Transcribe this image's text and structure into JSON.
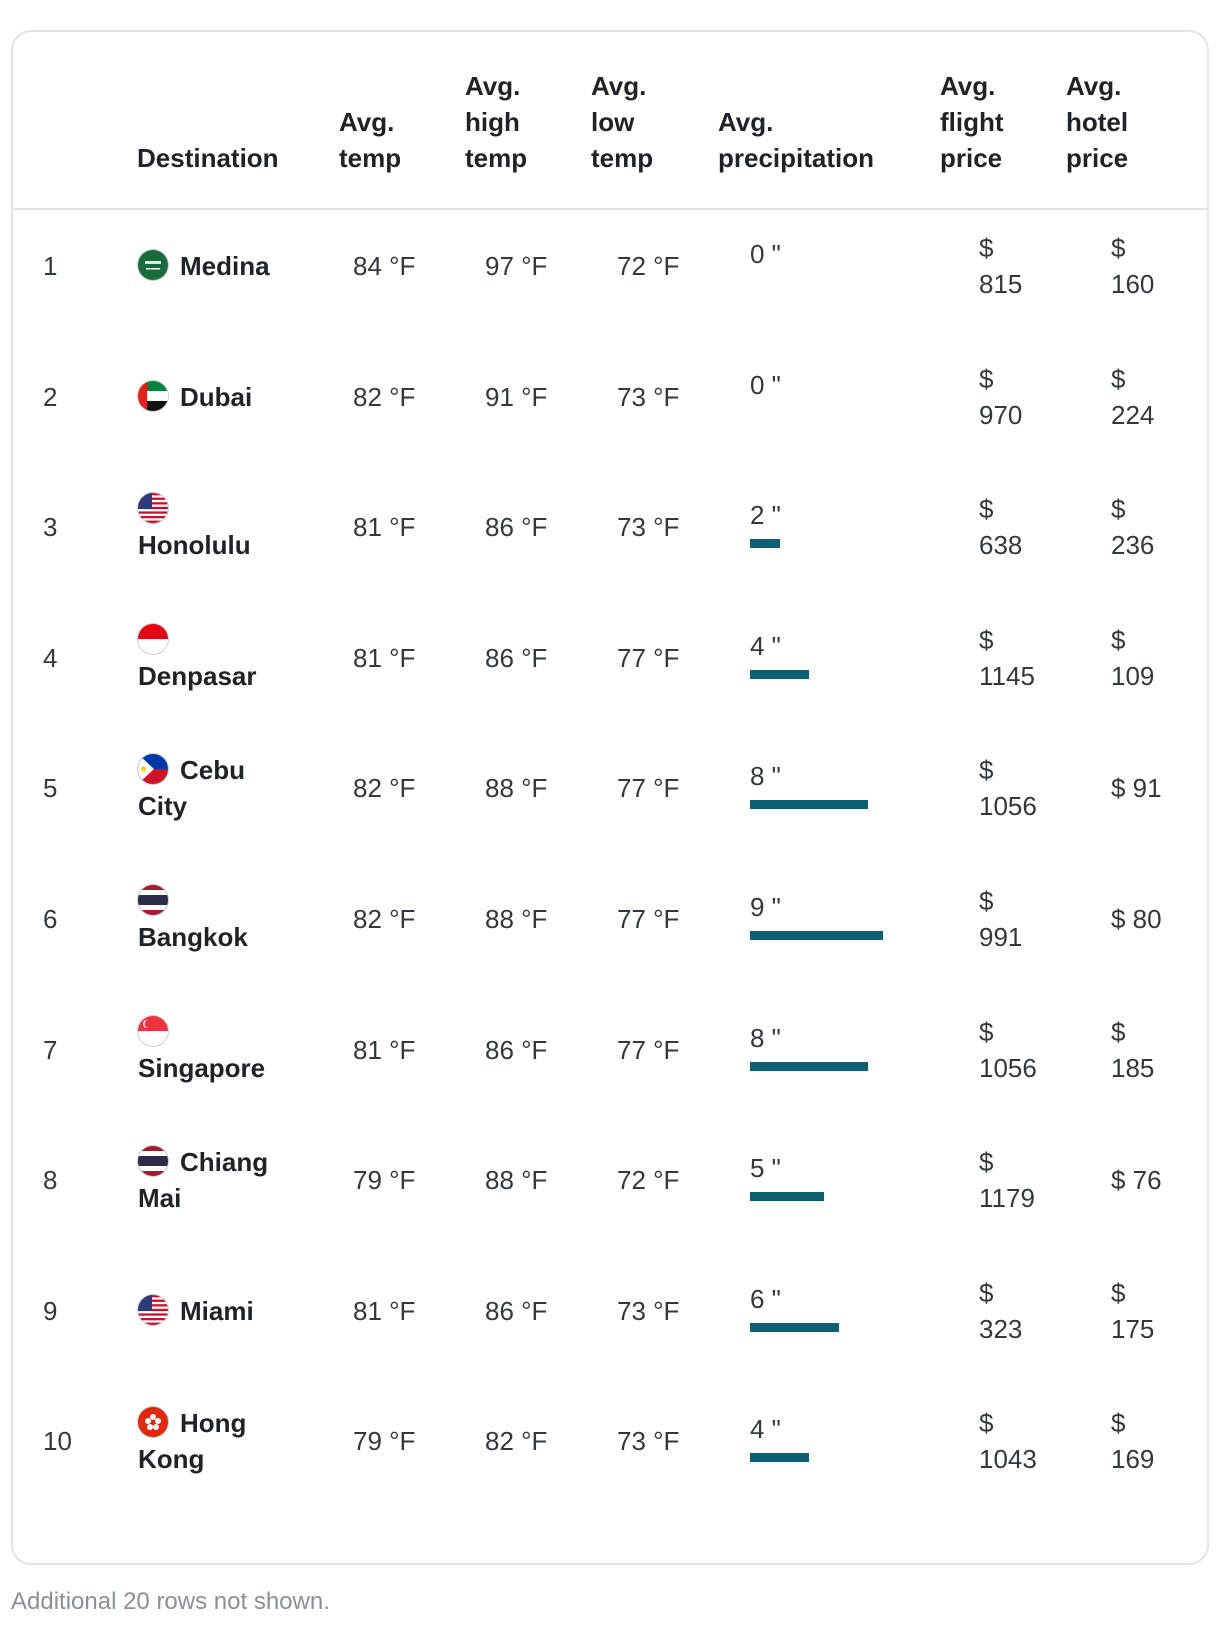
{
  "table": {
    "headers": {
      "destination": "Destination",
      "avg_temp": [
        "Avg.",
        "temp"
      ],
      "avg_high": [
        "Avg.",
        "high",
        "temp"
      ],
      "avg_low": [
        "Avg.",
        "low",
        "temp"
      ],
      "precip": [
        "Avg.",
        "precipitation"
      ],
      "flight": [
        "Avg.",
        "flight",
        "price"
      ],
      "hotel": [
        "Avg.",
        "hotel",
        "price"
      ]
    },
    "rows": [
      {
        "rank": "1",
        "destination": "Medina",
        "flag": "saudi-arabia-flag-icon",
        "avg_temp": "84 °F",
        "high": "97 °F",
        "low": "72 °F",
        "precip": "0 \"",
        "precip_value": 0,
        "flight": "$ 815",
        "hotel": "$ 160"
      },
      {
        "rank": "2",
        "destination": "Dubai",
        "flag": "uae-flag-icon",
        "avg_temp": "82 °F",
        "high": "91 °F",
        "low": "73 °F",
        "precip": "0 \"",
        "precip_value": 0,
        "flight": "$ 970",
        "hotel": "$ 224"
      },
      {
        "rank": "3",
        "destination": "Honolulu",
        "flag": "usa-flag-icon",
        "avg_temp": "81 °F",
        "high": "86 °F",
        "low": "73 °F",
        "precip": "2 \"",
        "precip_value": 2,
        "flight": "$ 638",
        "hotel": "$ 236"
      },
      {
        "rank": "4",
        "destination": "Denpasar",
        "flag": "indonesia-flag-icon",
        "avg_temp": "81 °F",
        "high": "86 °F",
        "low": "77 °F",
        "precip": "4 \"",
        "precip_value": 4,
        "flight": "$ 1145",
        "hotel": "$ 109"
      },
      {
        "rank": "5",
        "destination": "Cebu City",
        "flag": "philippines-flag-icon",
        "avg_temp": "82 °F",
        "high": "88 °F",
        "low": "77 °F",
        "precip": "8 \"",
        "precip_value": 8,
        "flight": "$ 1056",
        "hotel": "$ 91"
      },
      {
        "rank": "6",
        "destination": "Bangkok",
        "flag": "thailand-flag-icon",
        "avg_temp": "82 °F",
        "high": "88 °F",
        "low": "77 °F",
        "precip": "9 \"",
        "precip_value": 9,
        "flight": "$ 991",
        "hotel": "$ 80"
      },
      {
        "rank": "7",
        "destination": "Singapore",
        "flag": "singapore-flag-icon",
        "avg_temp": "81 °F",
        "high": "86 °F",
        "low": "77 °F",
        "precip": "8 \"",
        "precip_value": 8,
        "flight": "$ 1056",
        "hotel": "$ 185"
      },
      {
        "rank": "8",
        "destination": "Chiang Mai",
        "flag": "thailand-flag-icon",
        "avg_temp": "79 °F",
        "high": "88 °F",
        "low": "72 °F",
        "precip": "5 \"",
        "precip_value": 5,
        "flight": "$ 1179",
        "hotel": "$ 76"
      },
      {
        "rank": "9",
        "destination": "Miami",
        "flag": "usa-flag-icon",
        "avg_temp": "81 °F",
        "high": "86 °F",
        "low": "73 °F",
        "precip": "6 \"",
        "precip_value": 6,
        "flight": "$ 323",
        "hotel": "$ 175"
      },
      {
        "rank": "10",
        "destination": "Hong Kong",
        "flag": "hong-kong-flag-icon",
        "avg_temp": "79 °F",
        "high": "82 °F",
        "low": "73 °F",
        "precip": "4 \"",
        "precip_value": 4,
        "flight": "$ 1043",
        "hotel": "$ 169"
      }
    ],
    "precip_max": 9
  },
  "colors": {
    "precip_bar": "#0e5f73",
    "border": "#e2e4e6",
    "footnote": "#8a9096"
  },
  "footnote": "Additional 20 rows not shown."
}
